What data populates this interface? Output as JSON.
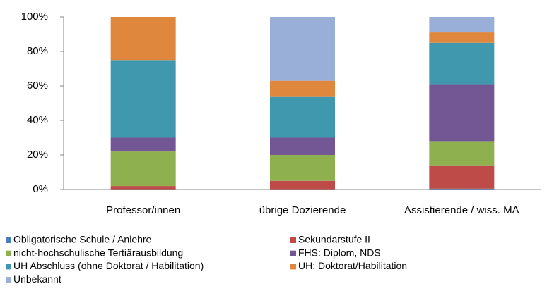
{
  "chart_data": {
    "type": "stacked_bar",
    "categories": [
      "Professor/innen",
      "übrige Dozierende",
      "Assistierende / wiss. MA"
    ],
    "series": [
      {
        "name": "Obligatorische Schule / Anlehre",
        "color": "#4a7ebb",
        "values": [
          0,
          0,
          0.5
        ]
      },
      {
        "name": "Sekundarstufe II",
        "color": "#be4b48",
        "values": [
          2,
          5,
          13.5
        ]
      },
      {
        "name": "nicht-hochschulische Tertiärausbildung",
        "color": "#8fb04f",
        "values": [
          20,
          15,
          14
        ]
      },
      {
        "name": "FHS: Diplom, NDS",
        "color": "#735795",
        "values": [
          8,
          10,
          33
        ]
      },
      {
        "name": "UH Abschluss (ohne Doktorat / Habilitation)",
        "color": "#3f98ad",
        "values": [
          45,
          24,
          24
        ]
      },
      {
        "name": "UH: Doktorat/Habilitation",
        "color": "#e0873e",
        "values": [
          25,
          9,
          6
        ]
      },
      {
        "name": "Unbekannt",
        "color": "#9aafd8",
        "values": [
          0,
          37,
          9
        ]
      }
    ],
    "ylim": [
      0,
      100
    ],
    "yticks": [
      {
        "value": 0,
        "label": "0%"
      },
      {
        "value": 20,
        "label": "20%"
      },
      {
        "value": 40,
        "label": "40%"
      },
      {
        "value": 60,
        "label": "60%"
      },
      {
        "value": 80,
        "label": "80%"
      },
      {
        "value": 100,
        "label": "100%"
      }
    ],
    "grid": false,
    "legend": "bottom"
  }
}
